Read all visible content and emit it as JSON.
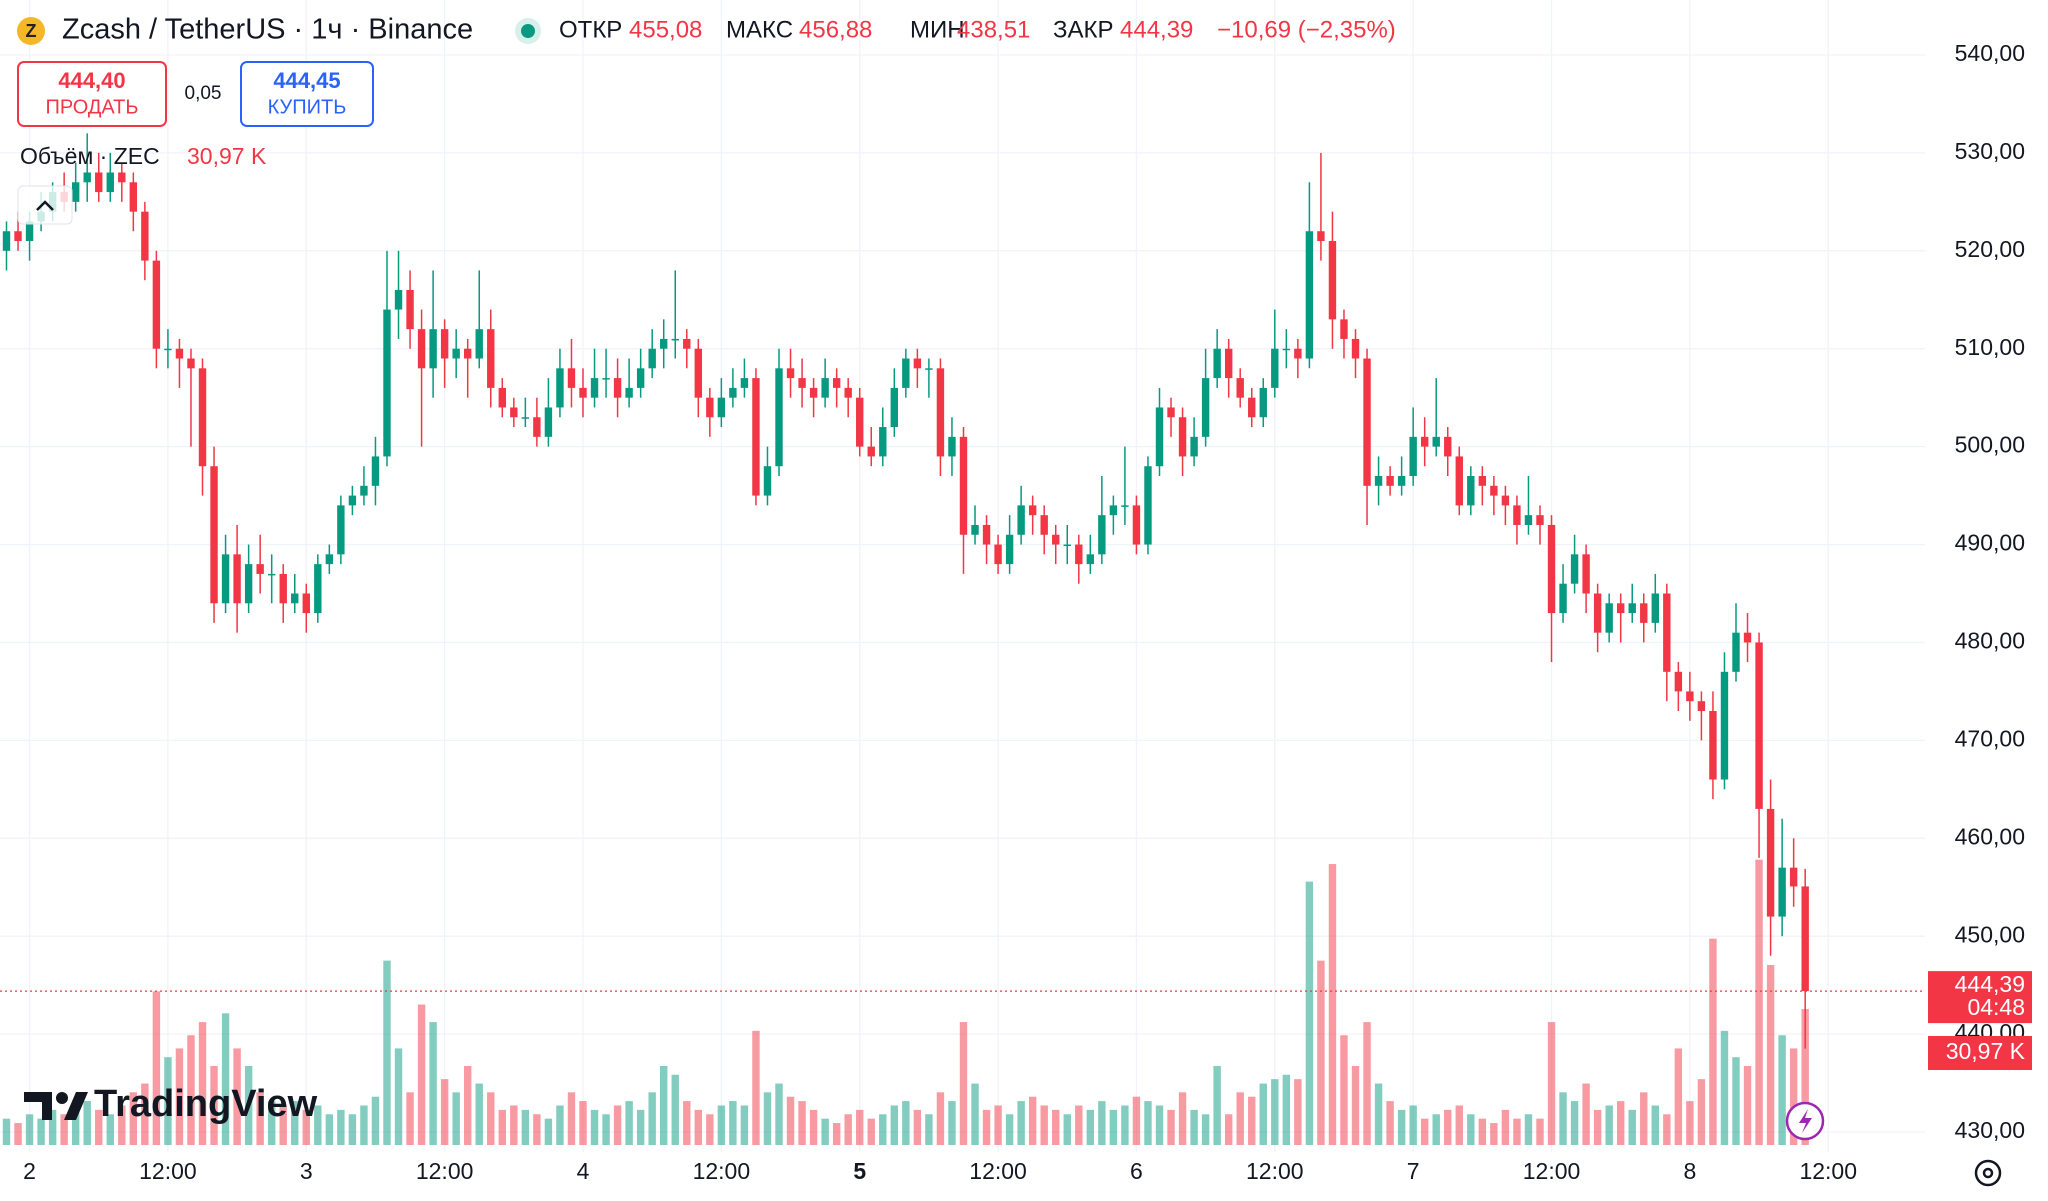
{
  "chart_data": {
    "type": "candlestick",
    "symbol": "Zcash / TetherUS · 1ч · Binance",
    "ohlc_legend": [
      {
        "name": "ОТКР",
        "value": 455.08,
        "label": "455,08"
      },
      {
        "name": "МАКС",
        "value": 456.88,
        "label": "456,88"
      },
      {
        "name": "МИН",
        "value": 438.51,
        "label": "438,51"
      },
      {
        "name": "ЗАКР",
        "value": 444.39,
        "label": "444,39"
      }
    ],
    "change_label": "−10,69 (−2,35%)",
    "sell": {
      "value": 444.4,
      "label": "444,40",
      "action": "ПРОДАТЬ"
    },
    "spread": {
      "value": 0.05,
      "label": "0,05"
    },
    "buy": {
      "value": 444.45,
      "label": "444,45",
      "action": "КУПИТЬ"
    },
    "volume_title": "Объём · ZEC",
    "volume_last": {
      "value": 30.97,
      "label": "30,97 K"
    },
    "last_price": {
      "value": 444.39,
      "label": "444,39"
    },
    "countdown": "04:48",
    "brand": "TradingView",
    "up_color": "#089981",
    "down_color": "#f23645",
    "ylim": [
      430,
      540
    ],
    "yticks": [
      {
        "value": 430,
        "label": "430,00"
      },
      {
        "value": 440,
        "label": "440,00"
      },
      {
        "value": 450,
        "label": "450,00"
      },
      {
        "value": 460,
        "label": "460,00"
      },
      {
        "value": 470,
        "label": "470,00"
      },
      {
        "value": 480,
        "label": "480,00"
      },
      {
        "value": 490,
        "label": "490,00"
      },
      {
        "value": 500,
        "label": "500,00"
      },
      {
        "value": 510,
        "label": "510,00"
      },
      {
        "value": 520,
        "label": "520,00"
      },
      {
        "value": 530,
        "label": "530,00"
      },
      {
        "value": 540,
        "label": "540,00"
      }
    ],
    "xticks": [
      {
        "value": 2,
        "label": "2"
      },
      {
        "value": 14,
        "label": "12:00"
      },
      {
        "value": 26,
        "label": "3"
      },
      {
        "value": 38,
        "label": "12:00"
      },
      {
        "value": 50,
        "label": "4"
      },
      {
        "value": 62,
        "label": "12:00"
      },
      {
        "value": 74,
        "label": "5",
        "bold": true
      },
      {
        "value": 86,
        "label": "12:00"
      },
      {
        "value": 98,
        "label": "6"
      },
      {
        "value": 110,
        "label": "12:00"
      },
      {
        "value": 122,
        "label": "7"
      },
      {
        "value": 134,
        "label": "12:00"
      },
      {
        "value": 146,
        "label": "8"
      },
      {
        "value": 158,
        "label": "12:00"
      }
    ],
    "candles": [
      [
        520,
        523,
        518,
        522
      ],
      [
        522,
        524,
        520,
        521
      ],
      [
        521,
        524,
        519,
        523
      ],
      [
        523,
        526,
        522,
        524
      ],
      [
        524,
        527,
        523,
        526
      ],
      [
        526,
        528,
        524,
        525
      ],
      [
        525,
        529,
        524,
        527
      ],
      [
        527,
        532,
        525,
        528
      ],
      [
        528,
        530,
        525,
        526
      ],
      [
        526,
        530,
        525,
        528
      ],
      [
        528,
        529,
        525,
        527
      ],
      [
        527,
        528,
        522,
        524
      ],
      [
        524,
        525,
        517,
        519
      ],
      [
        519,
        520,
        508,
        510
      ],
      [
        510,
        512,
        508,
        510
      ],
      [
        510,
        511,
        506,
        509
      ],
      [
        509,
        510,
        500,
        508
      ],
      [
        508,
        509,
        495,
        498
      ],
      [
        498,
        500,
        482,
        484
      ],
      [
        484,
        491,
        483,
        489
      ],
      [
        489,
        492,
        481,
        484
      ],
      [
        484,
        490,
        483,
        488
      ],
      [
        488,
        491,
        485,
        487
      ],
      [
        487,
        489,
        484,
        487
      ],
      [
        487,
        488,
        482,
        484
      ],
      [
        484,
        487,
        483,
        485
      ],
      [
        485,
        486,
        481,
        483
      ],
      [
        483,
        489,
        482,
        488
      ],
      [
        488,
        490,
        487,
        489
      ],
      [
        489,
        495,
        488,
        494
      ],
      [
        494,
        496,
        493,
        495
      ],
      [
        495,
        498,
        494,
        496
      ],
      [
        496,
        501,
        494,
        499
      ],
      [
        499,
        520,
        498,
        514
      ],
      [
        514,
        520,
        511,
        516
      ],
      [
        516,
        518,
        510,
        512
      ],
      [
        512,
        514,
        500,
        508
      ],
      [
        508,
        518,
        505,
        512
      ],
      [
        512,
        513,
        506,
        509
      ],
      [
        509,
        512,
        507,
        510
      ],
      [
        510,
        511,
        505,
        509
      ],
      [
        509,
        518,
        508,
        512
      ],
      [
        512,
        514,
        504,
        506
      ],
      [
        506,
        507,
        503,
        504
      ],
      [
        504,
        505,
        502,
        503
      ],
      [
        503,
        505,
        502,
        503
      ],
      [
        503,
        505,
        500,
        501
      ],
      [
        501,
        507,
        500,
        504
      ],
      [
        504,
        510,
        503,
        508
      ],
      [
        508,
        511,
        504,
        506
      ],
      [
        506,
        508,
        503,
        505
      ],
      [
        505,
        510,
        504,
        507
      ],
      [
        507,
        510,
        505,
        507
      ],
      [
        507,
        509,
        503,
        505
      ],
      [
        505,
        509,
        504,
        506
      ],
      [
        506,
        510,
        505,
        508
      ],
      [
        508,
        512,
        507,
        510
      ],
      [
        510,
        513,
        508,
        511
      ],
      [
        511,
        518,
        509,
        511
      ],
      [
        511,
        512,
        508,
        510
      ],
      [
        510,
        511,
        503,
        505
      ],
      [
        505,
        506,
        501,
        503
      ],
      [
        503,
        507,
        502,
        505
      ],
      [
        505,
        508,
        504,
        506
      ],
      [
        506,
        509,
        505,
        507
      ],
      [
        507,
        508,
        494,
        495
      ],
      [
        495,
        500,
        494,
        498
      ],
      [
        498,
        510,
        497,
        508
      ],
      [
        508,
        510,
        505,
        507
      ],
      [
        507,
        509,
        504,
        506
      ],
      [
        506,
        507,
        503,
        505
      ],
      [
        505,
        509,
        504,
        507
      ],
      [
        507,
        508,
        504,
        506
      ],
      [
        506,
        507,
        503,
        505
      ],
      [
        505,
        506,
        499,
        500
      ],
      [
        500,
        502,
        498,
        499
      ],
      [
        499,
        504,
        498,
        502
      ],
      [
        502,
        508,
        501,
        506
      ],
      [
        506,
        510,
        505,
        509
      ],
      [
        509,
        510,
        506,
        508
      ],
      [
        508,
        509,
        505,
        508
      ],
      [
        508,
        509,
        497,
        499
      ],
      [
        499,
        503,
        497,
        501
      ],
      [
        501,
        502,
        487,
        491
      ],
      [
        491,
        494,
        490,
        492
      ],
      [
        492,
        493,
        488,
        490
      ],
      [
        490,
        491,
        487,
        488
      ],
      [
        488,
        493,
        487,
        491
      ],
      [
        491,
        496,
        490,
        494
      ],
      [
        494,
        495,
        491,
        493
      ],
      [
        493,
        494,
        489,
        491
      ],
      [
        491,
        492,
        488,
        490
      ],
      [
        490,
        492,
        488,
        490
      ],
      [
        490,
        491,
        486,
        488
      ],
      [
        488,
        491,
        487,
        489
      ],
      [
        489,
        497,
        488,
        493
      ],
      [
        493,
        495,
        491,
        494
      ],
      [
        494,
        500,
        492,
        494
      ],
      [
        494,
        495,
        489,
        490
      ],
      [
        490,
        499,
        489,
        498
      ],
      [
        498,
        506,
        497,
        504
      ],
      [
        504,
        505,
        501,
        503
      ],
      [
        503,
        504,
        497,
        499
      ],
      [
        499,
        503,
        498,
        501
      ],
      [
        501,
        510,
        500,
        507
      ],
      [
        507,
        512,
        506,
        510
      ],
      [
        510,
        511,
        505,
        507
      ],
      [
        507,
        508,
        504,
        505
      ],
      [
        505,
        506,
        502,
        503
      ],
      [
        503,
        507,
        502,
        506
      ],
      [
        506,
        514,
        505,
        510
      ],
      [
        510,
        512,
        508,
        510
      ],
      [
        510,
        511,
        507,
        509
      ],
      [
        509,
        527,
        508,
        522
      ],
      [
        522,
        530,
        519,
        521
      ],
      [
        521,
        524,
        510,
        513
      ],
      [
        513,
        514,
        509,
        511
      ],
      [
        511,
        512,
        507,
        509
      ],
      [
        509,
        510,
        492,
        496
      ],
      [
        496,
        499,
        494,
        497
      ],
      [
        497,
        498,
        495,
        496
      ],
      [
        496,
        499,
        495,
        497
      ],
      [
        497,
        504,
        496,
        501
      ],
      [
        501,
        503,
        498,
        500
      ],
      [
        500,
        507,
        499,
        501
      ],
      [
        501,
        502,
        497,
        499
      ],
      [
        499,
        500,
        493,
        494
      ],
      [
        494,
        498,
        493,
        497
      ],
      [
        497,
        498,
        494,
        496
      ],
      [
        496,
        497,
        493,
        495
      ],
      [
        495,
        496,
        492,
        494
      ],
      [
        494,
        495,
        490,
        492
      ],
      [
        492,
        497,
        491,
        493
      ],
      [
        493,
        494,
        490,
        492
      ],
      [
        492,
        493,
        478,
        483
      ],
      [
        483,
        488,
        482,
        486
      ],
      [
        486,
        491,
        485,
        489
      ],
      [
        489,
        490,
        483,
        485
      ],
      [
        485,
        486,
        479,
        481
      ],
      [
        481,
        485,
        480,
        484
      ],
      [
        484,
        485,
        480,
        483
      ],
      [
        483,
        486,
        482,
        484
      ],
      [
        484,
        485,
        480,
        482
      ],
      [
        482,
        487,
        481,
        485
      ],
      [
        485,
        486,
        474,
        477
      ],
      [
        477,
        478,
        473,
        475
      ],
      [
        475,
        477,
        472,
        474
      ],
      [
        474,
        475,
        470,
        473
      ],
      [
        473,
        475,
        464,
        466
      ],
      [
        466,
        479,
        465,
        477
      ],
      [
        477,
        484,
        476,
        481
      ],
      [
        481,
        483,
        478,
        480
      ],
      [
        480,
        481,
        458,
        463
      ],
      [
        463,
        466,
        448,
        452
      ],
      [
        452,
        462,
        450,
        457
      ],
      [
        457,
        460,
        453,
        455.08
      ],
      [
        455.08,
        456.88,
        438.51,
        444.39
      ]
    ],
    "volumes": [
      6,
      5,
      7,
      6,
      8,
      7,
      9,
      10,
      8,
      7,
      9,
      12,
      14,
      35,
      20,
      22,
      25,
      28,
      18,
      30,
      22,
      18,
      12,
      10,
      9,
      10,
      8,
      9,
      7,
      8,
      7,
      9,
      11,
      42,
      22,
      12,
      32,
      28,
      15,
      12,
      18,
      14,
      12,
      8,
      9,
      8,
      7,
      6,
      9,
      12,
      10,
      8,
      7,
      9,
      10,
      8,
      12,
      18,
      16,
      10,
      8,
      7,
      9,
      10,
      9,
      26,
      12,
      14,
      11,
      10,
      8,
      6,
      5,
      7,
      8,
      6,
      7,
      9,
      10,
      8,
      7,
      12,
      10,
      28,
      14,
      8,
      9,
      7,
      10,
      11,
      9,
      8,
      7,
      9,
      8,
      10,
      8,
      9,
      11,
      10,
      9,
      8,
      12,
      8,
      7,
      18,
      7,
      12,
      11,
      14,
      15,
      16,
      15,
      60,
      42,
      64,
      25,
      18,
      28,
      14,
      10,
      8,
      9,
      6,
      7,
      8,
      9,
      7,
      6,
      5,
      8,
      6,
      7,
      6,
      28,
      12,
      10,
      14,
      8,
      9,
      10,
      8,
      12,
      9,
      7,
      22,
      10,
      15,
      47,
      26,
      20,
      18,
      65,
      41,
      25,
      22,
      30.97
    ]
  }
}
